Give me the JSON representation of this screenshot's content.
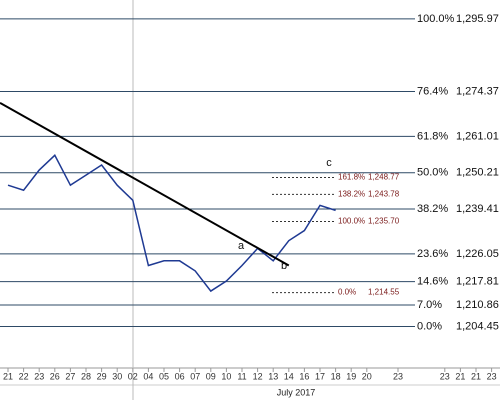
{
  "chart_data": {
    "type": "line",
    "ylim": [
      1193,
      1301.6
    ],
    "categories": [
      "21",
      "22",
      "23",
      "26",
      "27",
      "28",
      "29",
      "30",
      "02",
      "04",
      "05",
      "06",
      "07",
      "09",
      "10",
      "11",
      "12",
      "13",
      "14",
      "16",
      "17",
      "18",
      "19",
      "20",
      null,
      "23",
      null,
      null,
      "23",
      "21",
      "21",
      "23"
    ],
    "x_label": "July 2017",
    "series": [
      {
        "name": "Price",
        "color": "#1f3a93",
        "values": [
          1246.5,
          1245,
          1251,
          1255.4,
          1246.5,
          1249.5,
          1252.5,
          1246.5,
          1242,
          1222.6,
          1224,
          1224,
          1221,
          1215,
          1218,
          1222.6,
          1227.7,
          1224,
          1230,
          1233,
          1240.5,
          1239,
          null,
          null,
          null,
          null,
          null,
          null,
          null,
          null,
          null,
          null
        ]
      }
    ],
    "trendline": {
      "color": "#000000",
      "values": [
        1271,
        1222.6
      ]
    },
    "levels": [
      {
        "percent": "100.0%",
        "value": 1295.97,
        "label": "1,295.97"
      },
      {
        "percent": "76.4%",
        "value": 1274.37,
        "label": "1,274.37"
      },
      {
        "percent": "61.8%",
        "value": 1261.01,
        "label": "1,261.01"
      },
      {
        "percent": "50.0%",
        "value": 1250.21,
        "label": "1,250.21"
      },
      {
        "percent": "38.2%",
        "value": 1239.41,
        "label": "1,239.41"
      },
      {
        "percent": "23.6%",
        "value": 1226.05,
        "label": "1,226.05"
      },
      {
        "percent": "14.6%",
        "value": 1217.81,
        "label": "1,217.81"
      },
      {
        "percent": "7.0%",
        "value": 1210.86,
        "label": "1,210.86"
      },
      {
        "percent": "0.0%",
        "value": 1204.45,
        "label": "1,204.45"
      }
    ],
    "extensions": [
      {
        "percent": "161.8%",
        "value": 1248.77,
        "label": "1,248.77"
      },
      {
        "percent": "138.2%",
        "value": 1243.78,
        "label": "1,243.78"
      },
      {
        "percent": "100.0%",
        "value": 1235.7,
        "label": "1,235.70"
      },
      {
        "percent": "0.0%",
        "value": 1214.55,
        "label": "1,214.55"
      }
    ],
    "wave_labels": [
      "a",
      "b",
      "c"
    ]
  }
}
